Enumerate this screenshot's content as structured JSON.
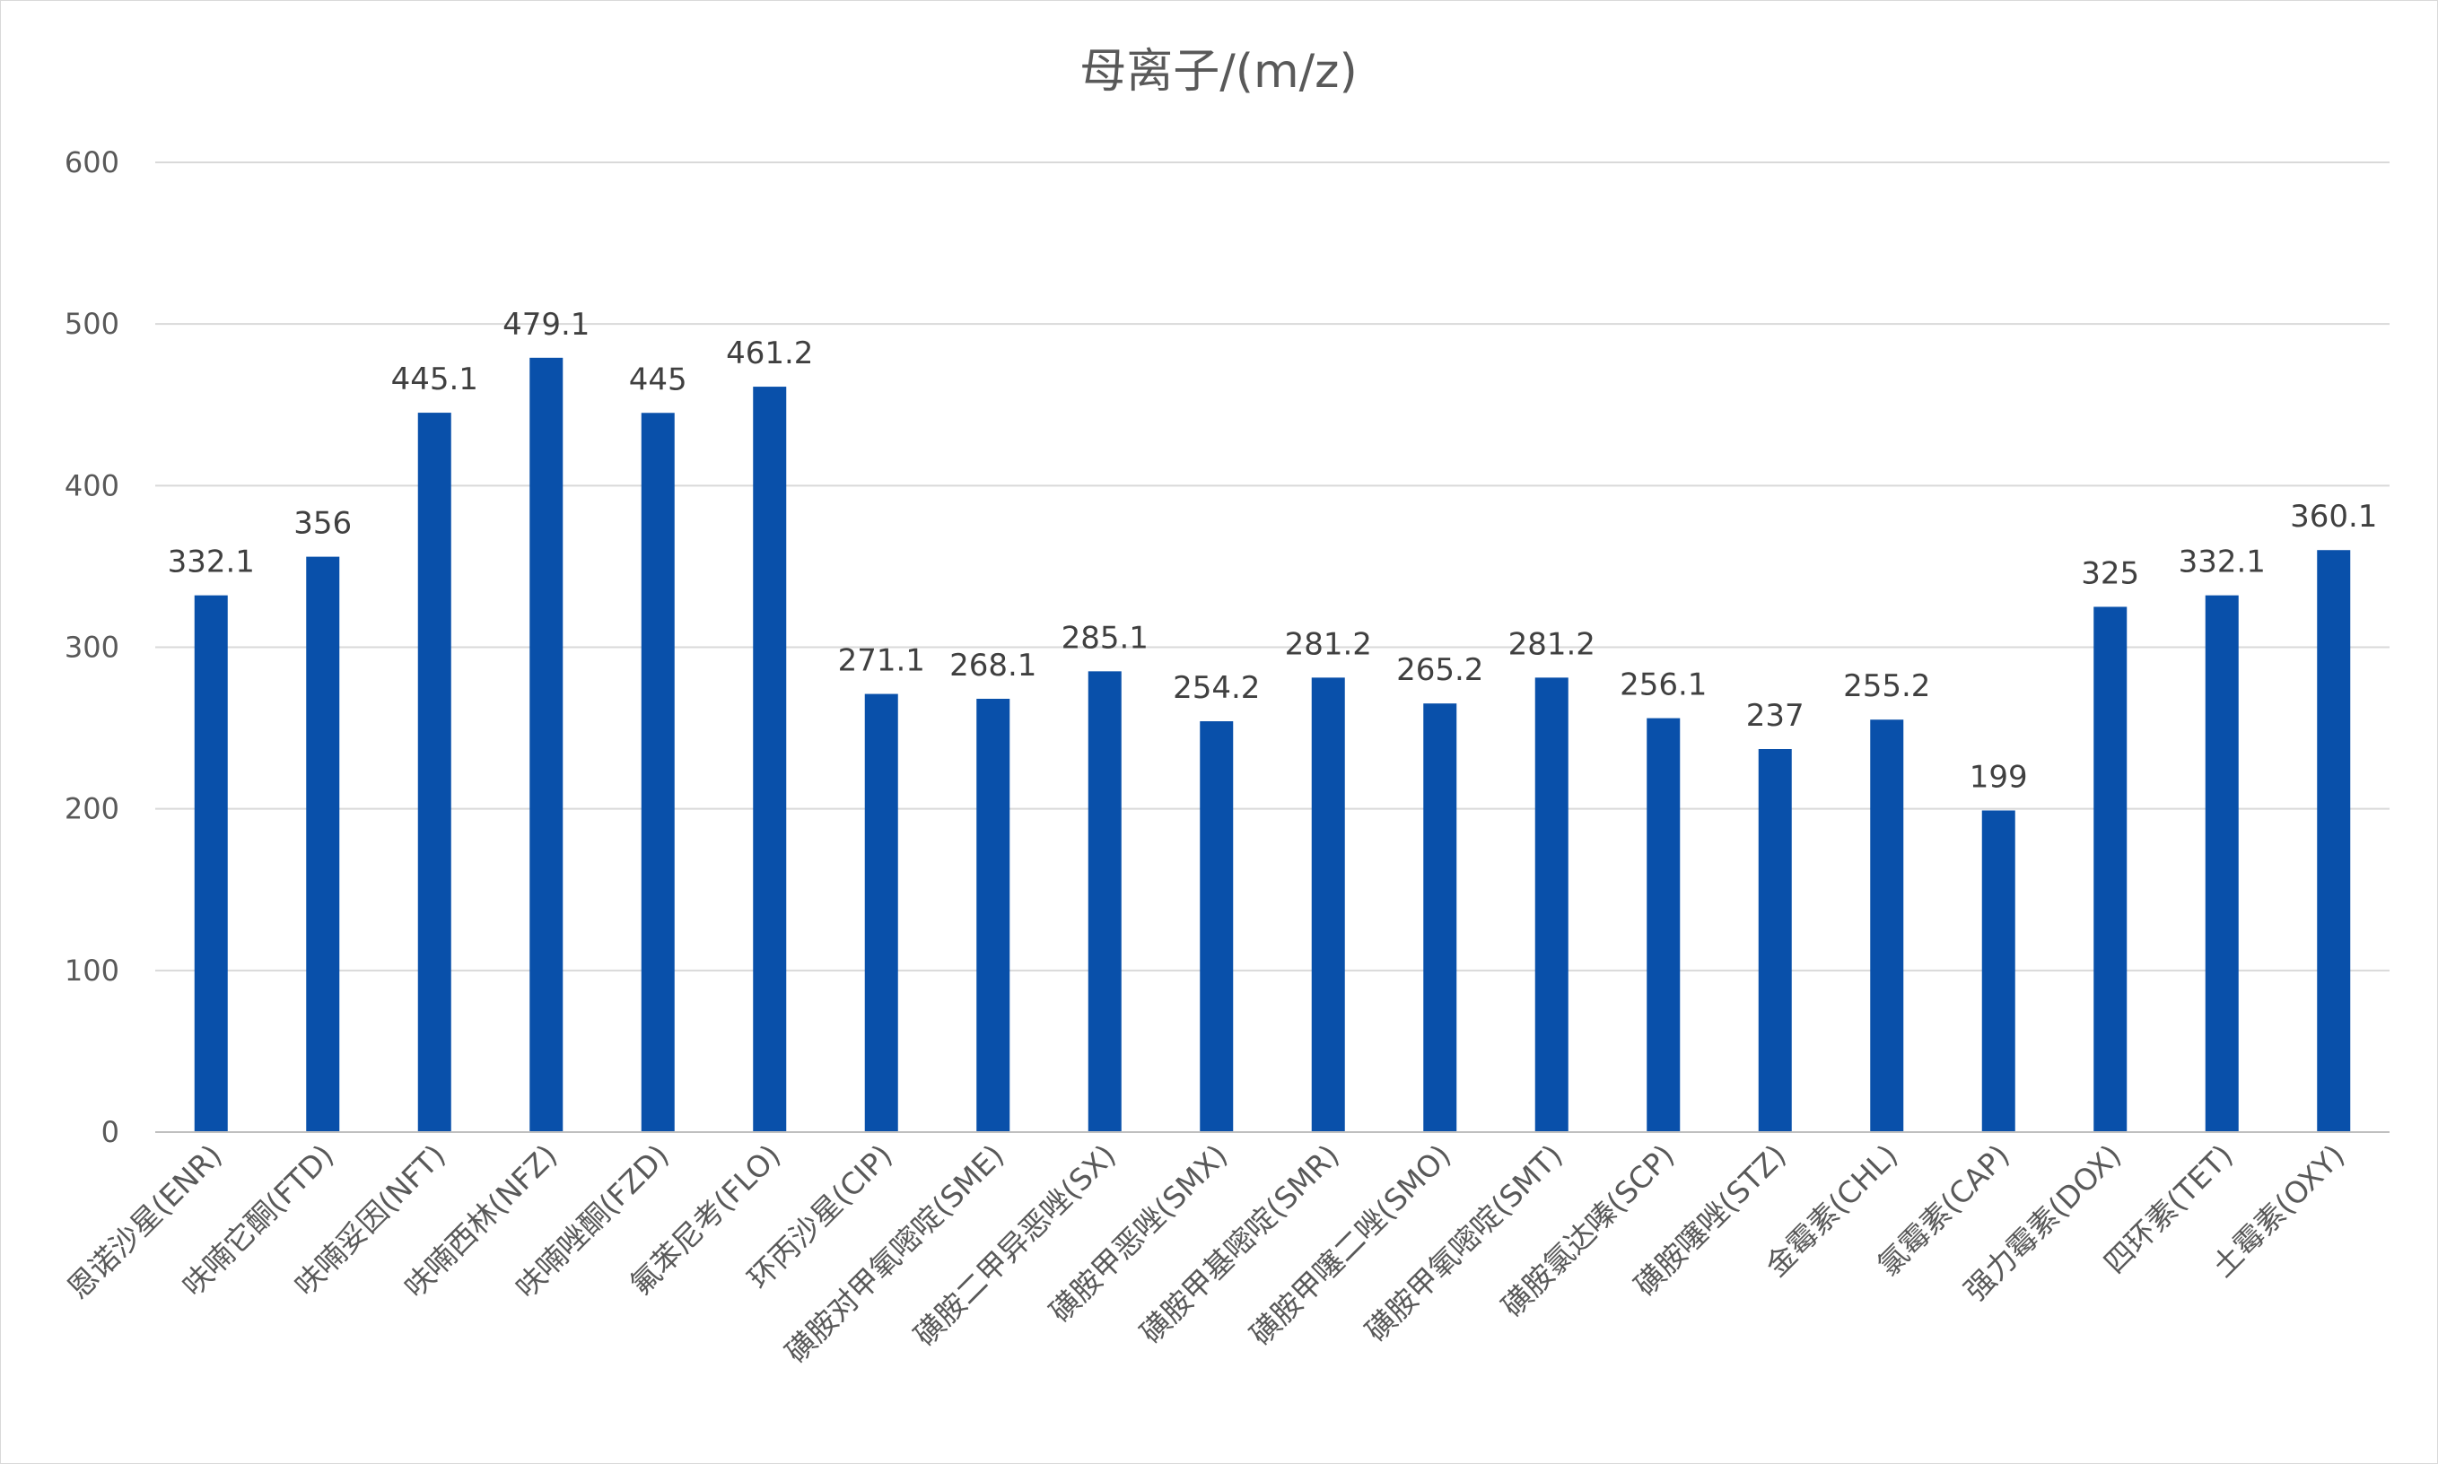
{
  "chart_data": {
    "type": "bar",
    "title": "母离子/(m/z)",
    "categories": [
      "恩诺沙星(ENR)",
      "呋喃它酮(FTD)",
      "呋喃妥因(NFT)",
      "呋喃西林(NFZ)",
      "呋喃唑酮(FZD)",
      "氟苯尼考(FLO)",
      "环丙沙星(CIP)",
      "磺胺对甲氧嘧啶(SME)",
      "磺胺二甲异恶唑(SX)",
      "磺胺甲恶唑(SMX)",
      "磺胺甲基嘧啶(SMR)",
      "磺胺甲噻二唑(SMO)",
      "磺胺甲氧嘧啶(SMT)",
      "磺胺氯达嗪(SCP)",
      "磺胺噻唑(STZ)",
      "金霉素(CHL)",
      "氯霉素(CAP)",
      "强力霉素(DOX)",
      "四环素(TET)",
      "土霉素(OXY)"
    ],
    "values": [
      332.1,
      356,
      445.1,
      479.1,
      445,
      461.2,
      271.1,
      268.1,
      285.1,
      254.2,
      281.2,
      265.2,
      281.2,
      256.1,
      237,
      255.2,
      199,
      325,
      332.1,
      360.1
    ],
    "value_labels": [
      "332.1",
      "356",
      "445.1",
      "479.1",
      "445",
      "461.2",
      "271.1",
      "268.1",
      "285.1",
      "254.2",
      "281.2",
      "265.2",
      "281.2",
      "256.1",
      "237",
      "255.2",
      "199",
      "325",
      "332.1",
      "360.1"
    ],
    "yticks": [
      0,
      100,
      200,
      300,
      400,
      500,
      600
    ],
    "ylim": [
      0,
      600
    ],
    "grid": true,
    "legend": "none",
    "bar_color": "#0950aa"
  }
}
